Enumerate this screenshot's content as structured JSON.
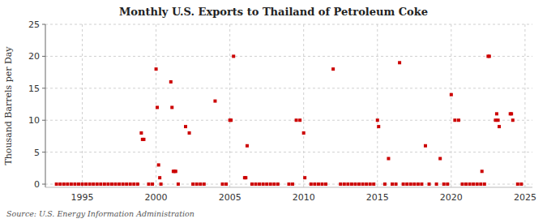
{
  "chart_data": {
    "type": "scatter",
    "title": "Monthly U.S. Exports to Thailand of Petroleum Coke",
    "y_label": "Thousand Barrels per Day",
    "annotations": [
      "Source: U.S. Energy Information Administration"
    ],
    "color": "#cc0000",
    "marker": "square",
    "grid": true,
    "xlim": [
      1992.5,
      2025.5
    ],
    "ylim": [
      -0.5,
      25
    ],
    "xticks": [
      1995,
      2000,
      2005,
      2010,
      2015,
      2020,
      2025
    ],
    "yticks": [
      0,
      5,
      10,
      15,
      20,
      25
    ],
    "x": [
      1993.25,
      1993.5,
      1993.75,
      1994.0,
      1994.25,
      1994.5,
      1994.75,
      1995.0,
      1995.25,
      1995.5,
      1995.75,
      1996.0,
      1996.25,
      1996.5,
      1996.75,
      1997.0,
      1997.25,
      1997.5,
      1997.75,
      1998.0,
      1998.25,
      1998.5,
      1998.75,
      1999.0,
      1999.08,
      1999.17,
      1999.5,
      1999.75,
      2000.0,
      2000.08,
      2000.17,
      2000.25,
      2000.33,
      2001.0,
      2001.08,
      2001.17,
      2001.25,
      2001.33,
      2001.5,
      2002.0,
      2002.25,
      2002.5,
      2002.75,
      2003.0,
      2003.25,
      2004.0,
      2004.5,
      2004.75,
      2005.0,
      2005.08,
      2005.25,
      2006.0,
      2006.08,
      2006.17,
      2006.5,
      2006.75,
      2007.0,
      2007.25,
      2007.5,
      2007.75,
      2008.0,
      2008.25,
      2009.0,
      2009.25,
      2009.5,
      2009.75,
      2010.0,
      2010.08,
      2010.5,
      2010.75,
      2011.0,
      2011.25,
      2011.5,
      2012.0,
      2012.5,
      2012.75,
      2013.0,
      2013.25,
      2013.5,
      2013.75,
      2014.0,
      2014.25,
      2014.5,
      2014.75,
      2015.0,
      2015.08,
      2015.5,
      2015.75,
      2016.0,
      2016.25,
      2016.5,
      2016.75,
      2017.0,
      2017.25,
      2017.5,
      2017.75,
      2018.0,
      2018.25,
      2018.5,
      2019.0,
      2019.25,
      2019.5,
      2019.75,
      2020.0,
      2020.25,
      2020.5,
      2020.75,
      2021.0,
      2021.25,
      2021.5,
      2021.75,
      2022.0,
      2022.08,
      2022.25,
      2022.5,
      2022.58,
      2023.0,
      2023.08,
      2023.17,
      2023.25,
      2024.0,
      2024.08,
      2024.17,
      2024.5,
      2024.75
    ],
    "values": [
      0,
      0,
      0,
      0,
      0,
      0,
      0,
      0,
      0,
      0,
      0,
      0,
      0,
      0,
      0,
      0,
      0,
      0,
      0,
      0,
      0,
      0,
      0,
      8,
      7,
      7,
      0,
      0,
      18,
      12,
      3,
      1,
      0,
      16,
      12,
      2,
      2,
      2,
      0,
      9,
      8,
      0,
      0,
      0,
      0,
      13,
      0,
      0,
      10,
      10,
      20,
      1,
      1,
      6,
      0,
      0,
      0,
      0,
      0,
      0,
      0,
      0,
      0,
      0,
      10,
      10,
      8,
      1,
      0,
      0,
      0,
      0,
      0,
      18,
      0,
      0,
      0,
      0,
      0,
      0,
      0,
      0,
      0,
      0,
      10,
      9,
      0,
      4,
      0,
      0,
      19,
      0,
      0,
      0,
      0,
      0,
      0,
      6,
      0,
      0,
      4,
      0,
      0,
      14,
      10,
      10,
      0,
      0,
      0,
      0,
      0,
      0,
      2,
      0,
      20,
      20,
      10,
      11,
      10,
      9,
      11,
      11,
      10,
      0,
      0
    ]
  }
}
